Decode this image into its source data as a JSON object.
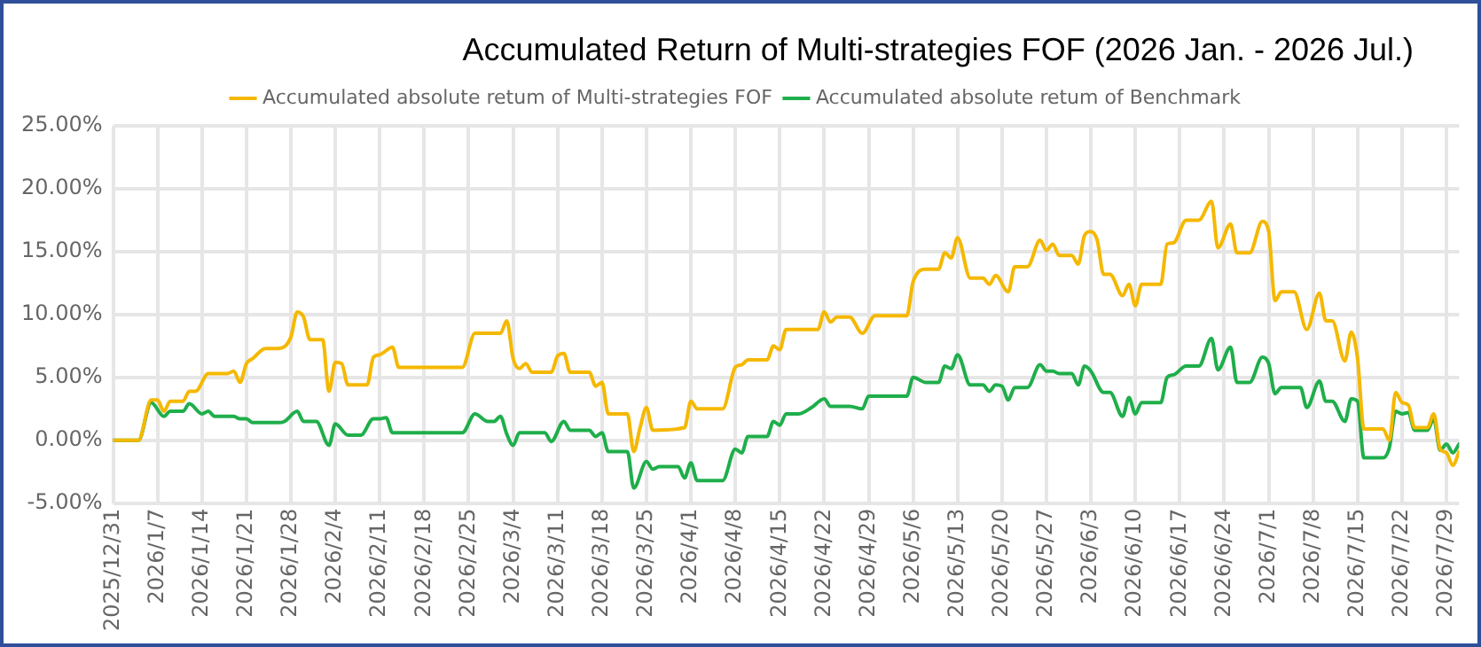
{
  "chart_data": {
    "type": "line",
    "title": "Accumulated Return of Multi-strategies FOF (2026 Jan. - 2026 Jul.)",
    "legend": "top",
    "grid": true,
    "marker": "none",
    "line_style": "solid",
    "xlim": [
      "2025-12-31",
      "2026-07-31"
    ],
    "xticks": [
      {
        "value": "2025-12-31",
        "label": "2025/12/31"
      },
      {
        "value": "2026-01-07",
        "label": "2026/1/7"
      },
      {
        "value": "2026-01-14",
        "label": "2026/1/14"
      },
      {
        "value": "2026-01-21",
        "label": "2026/1/21"
      },
      {
        "value": "2026-01-28",
        "label": "2026/1/28"
      },
      {
        "value": "2026-02-04",
        "label": "2026/2/4"
      },
      {
        "value": "2026-02-11",
        "label": "2026/2/11"
      },
      {
        "value": "2026-02-18",
        "label": "2026/2/18"
      },
      {
        "value": "2026-02-25",
        "label": "2026/2/25"
      },
      {
        "value": "2026-03-04",
        "label": "2026/3/4"
      },
      {
        "value": "2026-03-11",
        "label": "2026/3/11"
      },
      {
        "value": "2026-03-18",
        "label": "2026/3/18"
      },
      {
        "value": "2026-03-25",
        "label": "2026/3/25"
      },
      {
        "value": "2026-04-01",
        "label": "2026/4/1"
      },
      {
        "value": "2026-04-08",
        "label": "2026/4/8"
      },
      {
        "value": "2026-04-15",
        "label": "2026/4/15"
      },
      {
        "value": "2026-04-22",
        "label": "2026/4/22"
      },
      {
        "value": "2026-04-29",
        "label": "2026/4/29"
      },
      {
        "value": "2026-05-06",
        "label": "2026/5/6"
      },
      {
        "value": "2026-05-13",
        "label": "2026/5/13"
      },
      {
        "value": "2026-05-20",
        "label": "2026/5/20"
      },
      {
        "value": "2026-05-27",
        "label": "2026/5/27"
      },
      {
        "value": "2026-06-03",
        "label": "2026/6/3"
      },
      {
        "value": "2026-06-10",
        "label": "2026/6/10"
      },
      {
        "value": "2026-06-17",
        "label": "2026/6/17"
      },
      {
        "value": "2026-06-24",
        "label": "2026/6/24"
      },
      {
        "value": "2026-07-01",
        "label": "2026/7/1"
      },
      {
        "value": "2026-07-08",
        "label": "2026/7/8"
      },
      {
        "value": "2026-07-15",
        "label": "2026/7/15"
      },
      {
        "value": "2026-07-22",
        "label": "2026/7/22"
      },
      {
        "value": "2026-07-29",
        "label": "2026/7/29"
      }
    ],
    "ylim": [
      -5,
      25
    ],
    "yticks": [
      {
        "value": -5,
        "label": "-5.00%"
      },
      {
        "value": 0,
        "label": "0.00%"
      },
      {
        "value": 5,
        "label": "5.00%"
      },
      {
        "value": 10,
        "label": "10.00%"
      },
      {
        "value": 15,
        "label": "15.00%"
      },
      {
        "value": 20,
        "label": "20.00%"
      },
      {
        "value": 25,
        "label": "25.00%"
      }
    ],
    "series": [
      {
        "name": "Accumulated absolute retum of Multi-strategies FOF",
        "color": "#f5b800",
        "x": [
          "2025-12-31",
          "2026-01-04",
          "2026-01-06",
          "2026-01-07",
          "2026-01-08",
          "2026-01-09",
          "2026-01-11",
          "2026-01-12",
          "2026-01-13",
          "2026-01-15",
          "2026-01-18",
          "2026-01-19",
          "2026-01-20",
          "2026-01-21",
          "2026-01-22",
          "2026-01-24",
          "2026-01-26",
          "2026-01-28",
          "2026-01-29",
          "2026-01-30",
          "2026-01-31",
          "2026-02-02",
          "2026-02-03",
          "2026-02-04",
          "2026-02-05",
          "2026-02-06",
          "2026-02-09",
          "2026-02-10",
          "2026-02-11",
          "2026-02-13",
          "2026-02-14",
          "2026-02-24",
          "2026-02-26",
          "2026-03-02",
          "2026-03-03",
          "2026-03-04",
          "2026-03-05",
          "2026-03-06",
          "2026-03-07",
          "2026-03-10",
          "2026-03-11",
          "2026-03-12",
          "2026-03-13",
          "2026-03-16",
          "2026-03-17",
          "2026-03-18",
          "2026-03-19",
          "2026-03-22",
          "2026-03-23",
          "2026-03-24",
          "2026-03-25",
          "2026-03-26",
          "2026-03-31",
          "2026-04-01",
          "2026-04-02",
          "2026-04-06",
          "2026-04-08",
          "2026-04-09",
          "2026-04-10",
          "2026-04-13",
          "2026-04-14",
          "2026-04-15",
          "2026-04-16",
          "2026-04-21",
          "2026-04-22",
          "2026-04-23",
          "2026-04-24",
          "2026-04-26",
          "2026-04-28",
          "2026-04-30",
          "2026-05-05",
          "2026-05-06",
          "2026-05-08",
          "2026-05-10",
          "2026-05-11",
          "2026-05-12",
          "2026-05-13",
          "2026-05-15",
          "2026-05-17",
          "2026-05-18",
          "2026-05-19",
          "2026-05-21",
          "2026-05-22",
          "2026-05-24",
          "2026-05-26",
          "2026-05-27",
          "2026-05-28",
          "2026-05-29",
          "2026-05-31",
          "2026-06-01",
          "2026-06-02",
          "2026-06-03",
          "2026-06-04",
          "2026-06-05",
          "2026-06-06",
          "2026-06-08",
          "2026-06-09",
          "2026-06-10",
          "2026-06-11",
          "2026-06-14",
          "2026-06-15",
          "2026-06-16",
          "2026-06-18",
          "2026-06-20",
          "2026-06-22",
          "2026-06-23",
          "2026-06-25",
          "2026-06-26",
          "2026-06-28",
          "2026-06-30",
          "2026-07-01",
          "2026-07-02",
          "2026-07-03",
          "2026-07-05",
          "2026-07-07",
          "2026-07-09",
          "2026-07-10",
          "2026-07-11",
          "2026-07-13",
          "2026-07-14",
          "2026-07-15",
          "2026-07-16",
          "2026-07-19",
          "2026-07-20",
          "2026-07-21",
          "2026-07-22",
          "2026-07-23",
          "2026-07-24",
          "2026-07-26",
          "2026-07-27",
          "2026-07-28",
          "2026-07-29",
          "2026-07-30",
          "2026-07-31"
        ],
        "values": [
          0,
          0,
          3.2,
          3.2,
          2.3,
          3.1,
          3.1,
          3.9,
          3.9,
          5.3,
          5.3,
          5.5,
          4.6,
          6.1,
          6.5,
          7.3,
          7.3,
          8.2,
          10.2,
          9.8,
          8.0,
          8.0,
          3.9,
          6.2,
          6.1,
          4.4,
          4.4,
          6.6,
          6.8,
          7.4,
          5.8,
          5.8,
          8.5,
          8.5,
          9.5,
          6.5,
          5.7,
          6.1,
          5.4,
          5.4,
          6.7,
          6.9,
          5.4,
          5.4,
          4.3,
          4.6,
          2.1,
          2.1,
          -0.9,
          1.0,
          2.6,
          0.8,
          1.0,
          3.1,
          2.5,
          2.5,
          5.8,
          6.0,
          6.4,
          6.4,
          7.5,
          7.2,
          8.8,
          8.8,
          10.2,
          9.4,
          9.8,
          9.8,
          8.5,
          9.9,
          9.9,
          12.6,
          13.6,
          13.6,
          14.9,
          14.5,
          16.1,
          12.9,
          12.9,
          12.4,
          13.1,
          11.8,
          13.8,
          13.8,
          15.9,
          15.1,
          15.6,
          14.7,
          14.7,
          14.0,
          16.3,
          16.6,
          15.9,
          13.2,
          13.2,
          11.5,
          12.4,
          10.7,
          12.4,
          12.4,
          15.6,
          15.7,
          17.5,
          17.5,
          19.0,
          15.3,
          17.2,
          14.9,
          14.9,
          17.4,
          16.6,
          11.1,
          11.8,
          11.8,
          8.8,
          11.7,
          9.5,
          9.5,
          6.3,
          8.6,
          6.5,
          0.9,
          0.9,
          0,
          3.8,
          3.0,
          2.8,
          1.0,
          1.0,
          2.1,
          -0.7,
          -1.0,
          -2.0,
          -0.9
        ]
      },
      {
        "name": "Accumulated absolute retum of Benchmark",
        "color": "#1fae4b",
        "x": [
          "2025-12-31",
          "2026-01-04",
          "2026-01-06",
          "2026-01-08",
          "2026-01-09",
          "2026-01-11",
          "2026-01-12",
          "2026-01-14",
          "2026-01-15",
          "2026-01-16",
          "2026-01-19",
          "2026-01-20",
          "2026-01-21",
          "2026-01-22",
          "2026-01-26",
          "2026-01-27",
          "2026-01-29",
          "2026-01-30",
          "2026-02-01",
          "2026-02-03",
          "2026-02-04",
          "2026-02-06",
          "2026-02-08",
          "2026-02-10",
          "2026-02-11",
          "2026-02-12",
          "2026-02-13",
          "2026-02-24",
          "2026-02-26",
          "2026-02-28",
          "2026-03-01",
          "2026-03-02",
          "2026-03-03",
          "2026-03-04",
          "2026-03-05",
          "2026-03-09",
          "2026-03-10",
          "2026-03-12",
          "2026-03-13",
          "2026-03-16",
          "2026-03-17",
          "2026-03-18",
          "2026-03-19",
          "2026-03-22",
          "2026-03-23",
          "2026-03-25",
          "2026-03-26",
          "2026-03-27",
          "2026-03-30",
          "2026-03-31",
          "2026-04-01",
          "2026-04-02",
          "2026-04-06",
          "2026-04-08",
          "2026-04-09",
          "2026-04-10",
          "2026-04-13",
          "2026-04-14",
          "2026-04-15",
          "2026-04-16",
          "2026-04-18",
          "2026-04-20",
          "2026-04-22",
          "2026-04-23",
          "2026-04-26",
          "2026-04-28",
          "2026-04-29",
          "2026-05-05",
          "2026-05-06",
          "2026-05-08",
          "2026-05-10",
          "2026-05-11",
          "2026-05-12",
          "2026-05-13",
          "2026-05-15",
          "2026-05-17",
          "2026-05-18",
          "2026-05-19",
          "2026-05-20",
          "2026-05-21",
          "2026-05-22",
          "2026-05-24",
          "2026-05-26",
          "2026-05-27",
          "2026-05-28",
          "2026-05-29",
          "2026-05-31",
          "2026-06-01",
          "2026-06-02",
          "2026-06-03",
          "2026-06-05",
          "2026-06-06",
          "2026-06-08",
          "2026-06-09",
          "2026-06-10",
          "2026-06-11",
          "2026-06-14",
          "2026-06-15",
          "2026-06-16",
          "2026-06-18",
          "2026-06-20",
          "2026-06-22",
          "2026-06-23",
          "2026-06-25",
          "2026-06-26",
          "2026-06-28",
          "2026-06-30",
          "2026-07-01",
          "2026-07-02",
          "2026-07-03",
          "2026-07-06",
          "2026-07-07",
          "2026-07-09",
          "2026-07-10",
          "2026-07-11",
          "2026-07-13",
          "2026-07-14",
          "2026-07-15",
          "2026-07-16",
          "2026-07-19",
          "2026-07-20",
          "2026-07-21",
          "2026-07-22",
          "2026-07-23",
          "2026-07-24",
          "2026-07-26",
          "2026-07-27",
          "2026-07-28",
          "2026-07-29",
          "2026-07-30",
          "2026-07-31"
        ],
        "values": [
          0,
          0,
          3.0,
          1.9,
          2.3,
          2.3,
          2.9,
          2.1,
          2.3,
          1.9,
          1.9,
          1.7,
          1.7,
          1.4,
          1.4,
          1.5,
          2.3,
          1.5,
          1.5,
          -0.4,
          1.3,
          0.4,
          0.4,
          1.7,
          1.7,
          1.8,
          0.6,
          0.6,
          2.1,
          1.5,
          1.5,
          1.9,
          0.5,
          -0.4,
          0.6,
          0.6,
          -0.1,
          1.5,
          0.8,
          0.8,
          0.3,
          0.6,
          -0.9,
          -0.9,
          -3.8,
          -1.7,
          -2.3,
          -2.1,
          -2.1,
          -3.0,
          -1.8,
          -3.2,
          -3.2,
          -0.7,
          -1.0,
          0.3,
          0.3,
          1.5,
          1.2,
          2.1,
          2.1,
          2.6,
          3.3,
          2.7,
          2.7,
          2.5,
          3.5,
          3.5,
          5.0,
          4.6,
          4.6,
          5.9,
          5.7,
          6.8,
          4.4,
          4.4,
          3.9,
          4.4,
          4.3,
          3.2,
          4.2,
          4.2,
          6.0,
          5.5,
          5.5,
          5.3,
          5.3,
          4.4,
          5.9,
          5.5,
          3.8,
          3.8,
          1.9,
          3.4,
          2.1,
          3.0,
          3.0,
          5.0,
          5.2,
          5.9,
          5.9,
          8.1,
          5.6,
          7.4,
          4.6,
          4.6,
          6.6,
          6.1,
          3.7,
          4.2,
          4.2,
          2.6,
          4.7,
          3.1,
          3.1,
          1.5,
          3.3,
          3.1,
          -1.4,
          -1.4,
          -0.6,
          2.3,
          2.1,
          2.2,
          0.8,
          0.8,
          1.7,
          -0.8,
          -0.3,
          -1.0,
          -0.3
        ]
      }
    ]
  }
}
